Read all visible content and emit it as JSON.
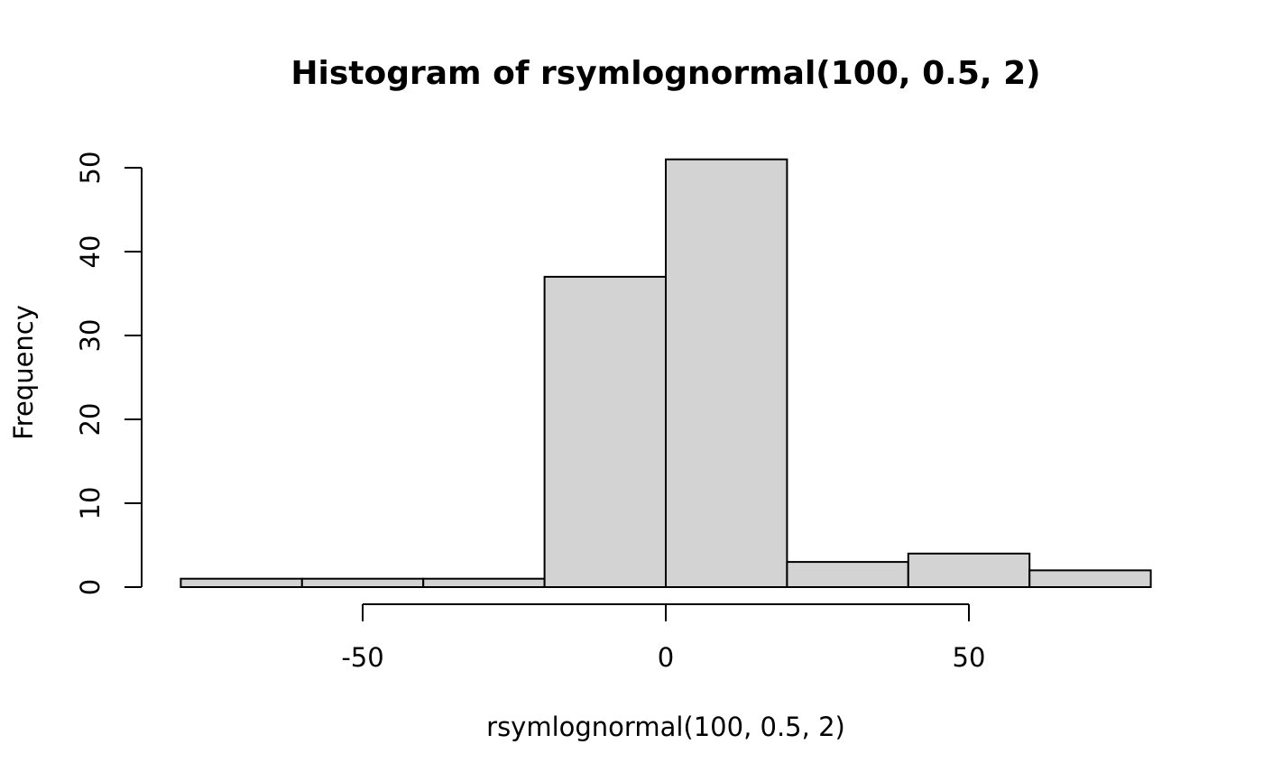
{
  "chart_data": {
    "type": "bar",
    "title": "Histogram of rsymlognormal(100, 0.5, 2)",
    "xlabel": "rsymlognormal(100, 0.5, 2)",
    "ylabel": "Frequency",
    "bins": [
      {
        "start": -80,
        "end": -60,
        "count": 1
      },
      {
        "start": -60,
        "end": -40,
        "count": 1
      },
      {
        "start": -40,
        "end": -20,
        "count": 1
      },
      {
        "start": -20,
        "end": 0,
        "count": 37
      },
      {
        "start": 0,
        "end": 20,
        "count": 51
      },
      {
        "start": 20,
        "end": 40,
        "count": 3
      },
      {
        "start": 40,
        "end": 60,
        "count": 4
      },
      {
        "start": 60,
        "end": 80,
        "count": 2
      }
    ],
    "x_ticks": [
      -50,
      0,
      50
    ],
    "y_ticks": [
      0,
      10,
      20,
      30,
      40,
      50
    ],
    "xlim": [
      -80,
      80
    ],
    "ylim": [
      0,
      50
    ],
    "grid": false,
    "bar_color": "#d3d3d3"
  }
}
